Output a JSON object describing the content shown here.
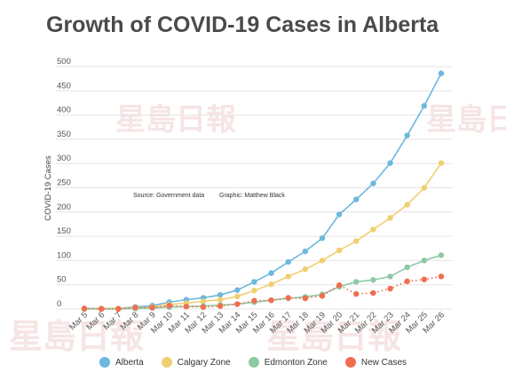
{
  "title": "Growth of COVID-19 Cases in Alberta",
  "source_note": "Source: Government data",
  "graphic_note": "Graphic: Matthew Black",
  "watermark_text": "星島日報",
  "chart_data": {
    "type": "line",
    "title": "Growth of COVID-19 Cases in Alberta",
    "xlabel": "",
    "ylabel": "COVID-19 Cases",
    "ylim": [
      0,
      500
    ],
    "yticks": [
      0,
      50,
      100,
      150,
      200,
      250,
      300,
      350,
      400,
      450,
      500
    ],
    "categories": [
      "Mar 5",
      "Mar 6",
      "Mar 7",
      "Mar 8",
      "Mar 9",
      "Mar 10",
      "Mar 11",
      "Mar 12",
      "Mar 13",
      "Mar 14",
      "Mar 15",
      "Mar 16",
      "Mar 17",
      "Mar 18",
      "Mar 19",
      "Mar 20",
      "Mar 21",
      "Mar 22",
      "Mar 23",
      "Mar 24",
      "Mar 25",
      "Mar 26"
    ],
    "grid": "horizontal",
    "legend_position": "bottom",
    "series": [
      {
        "name": "Alberta",
        "color": "#6cb8de",
        "style": "solid",
        "values": [
          1,
          1,
          1,
          4,
          7,
          14,
          19,
          23,
          29,
          39,
          56,
          74,
          97,
          119,
          146,
          195,
          226,
          259,
          301,
          358,
          419,
          486
        ]
      },
      {
        "name": "Calgary Zone",
        "color": "#f0cf72",
        "style": "solid",
        "values": [
          0,
          1,
          1,
          2,
          4,
          9,
          12,
          16,
          19,
          26,
          38,
          51,
          67,
          82,
          100,
          121,
          140,
          164,
          188,
          215,
          250,
          301
        ]
      },
      {
        "name": "Edmonton Zone",
        "color": "#8cc9a4",
        "style": "solid",
        "values": [
          0,
          0,
          0,
          1,
          2,
          4,
          5,
          6,
          8,
          10,
          14,
          18,
          22,
          25,
          30,
          46,
          56,
          60,
          67,
          86,
          100,
          111
        ]
      },
      {
        "name": "New Cases",
        "color": "#f26d4f",
        "style": "dotted",
        "values": [
          1,
          0,
          0,
          3,
          3,
          7,
          5,
          4,
          6,
          10,
          17,
          18,
          23,
          22,
          27,
          49,
          31,
          33,
          42,
          57,
          61,
          67
        ]
      }
    ]
  }
}
